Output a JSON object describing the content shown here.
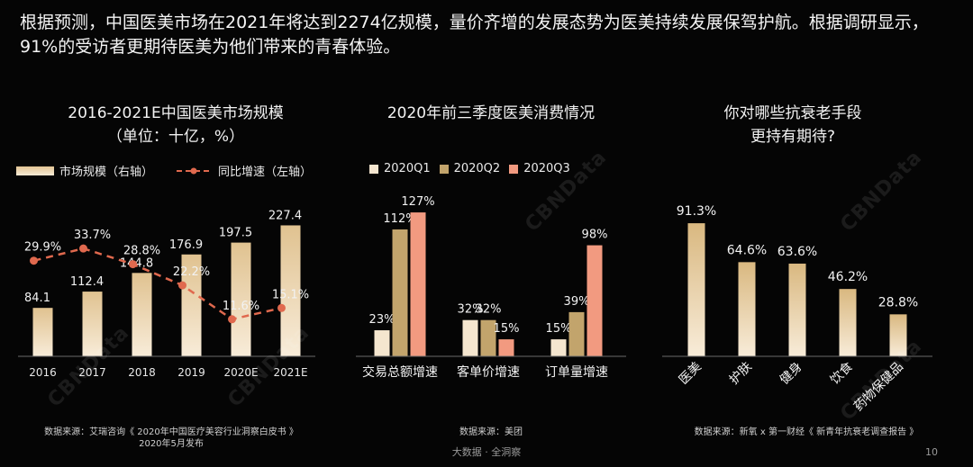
{
  "intro": "根据预测，中国医美市场在2021年将达到2274亿规模，量价齐增的发展态势为医美持续发展保驾护航。根据调研显示，91%的受访者更期待医美为他们带来的青春体验。",
  "chart1": {
    "title": "2016-2021E中国医美市场规模",
    "subtitle": "（单位：十亿，%）",
    "legend_bar": "市场规模（右轴）",
    "legend_line": "同比增速（左轴）",
    "source_line1": "数据来源：艾瑞咨询《 2020年中国医疗美容行业洞察白皮书 》",
    "source_line2": "2020年5月发布"
  },
  "chart2": {
    "title": "2020年前三季度医美消费情况",
    "source": "数据来源：美团"
  },
  "chart3": {
    "title_line1": "你对哪些抗衰老手段",
    "title_line2": "更持有期待?",
    "source": "数据来源：新氧 x 第一财经《 新青年抗衰老调查报告 》"
  },
  "footer": "大数据 · 全洞察",
  "page_number": "10",
  "watermark": "CBNData",
  "colors": {
    "bar_light": "#f5e6cf",
    "bar_tan": "#e0c290",
    "gold": "#c2a46c",
    "salmon": "#f29a80",
    "line": "#e0694e"
  },
  "chart_data": [
    {
      "type": "bar",
      "title": "2016-2021E中国医美市场规模",
      "categories": [
        "2016",
        "2017",
        "2018",
        "2019",
        "2020E",
        "2021E"
      ],
      "series": [
        {
          "name": "市场规模（右轴）",
          "kind": "bar",
          "values": [
            84.1,
            112.4,
            144.8,
            176.9,
            197.5,
            227.4
          ],
          "labels": [
            "84.1",
            "112.4",
            "144.8",
            "176.9",
            "197.5",
            "227.4"
          ]
        },
        {
          "name": "同比增速（左轴）",
          "kind": "line",
          "values": [
            29.9,
            33.7,
            28.8,
            22.2,
            11.6,
            15.1
          ],
          "labels": [
            "29.9%",
            "33.7%",
            "28.8%",
            "22.2%",
            "11.6%",
            "15.1%"
          ]
        }
      ],
      "ylim": [
        0,
        250
      ],
      "ylim_line": [
        0,
        45
      ],
      "grid": false,
      "legend": "top-left"
    },
    {
      "type": "bar",
      "title": "2020年前三季度医美消费情况",
      "categories": [
        "交易总额增速",
        "客单价增速",
        "订单量增速"
      ],
      "series": [
        {
          "name": "2020Q1",
          "color": "#f5e6cf",
          "values": [
            23,
            32,
            15
          ],
          "labels": [
            "23%",
            "32%",
            "15%"
          ]
        },
        {
          "name": "2020Q2",
          "color": "#c2a46c",
          "values": [
            112,
            32,
            39
          ],
          "labels": [
            "112%",
            "32%",
            "39%"
          ]
        },
        {
          "name": "2020Q3",
          "color": "#f29a80",
          "values": [
            127,
            15,
            98
          ],
          "labels": [
            "127%",
            "15%",
            "98%"
          ]
        }
      ],
      "ylim": [
        0,
        135
      ],
      "grid": false,
      "legend": "top"
    },
    {
      "type": "bar",
      "title": "你对哪些抗衰老手段更持有期待?",
      "categories": [
        "医美",
        "护肤",
        "健身",
        "饮食",
        "药物保健品"
      ],
      "values": [
        91.3,
        64.6,
        63.6,
        46.2,
        28.8
      ],
      "labels": [
        "91.3%",
        "64.6%",
        "63.6%",
        "46.2%",
        "28.8%"
      ],
      "ylim": [
        0,
        100
      ],
      "grid": false
    }
  ]
}
